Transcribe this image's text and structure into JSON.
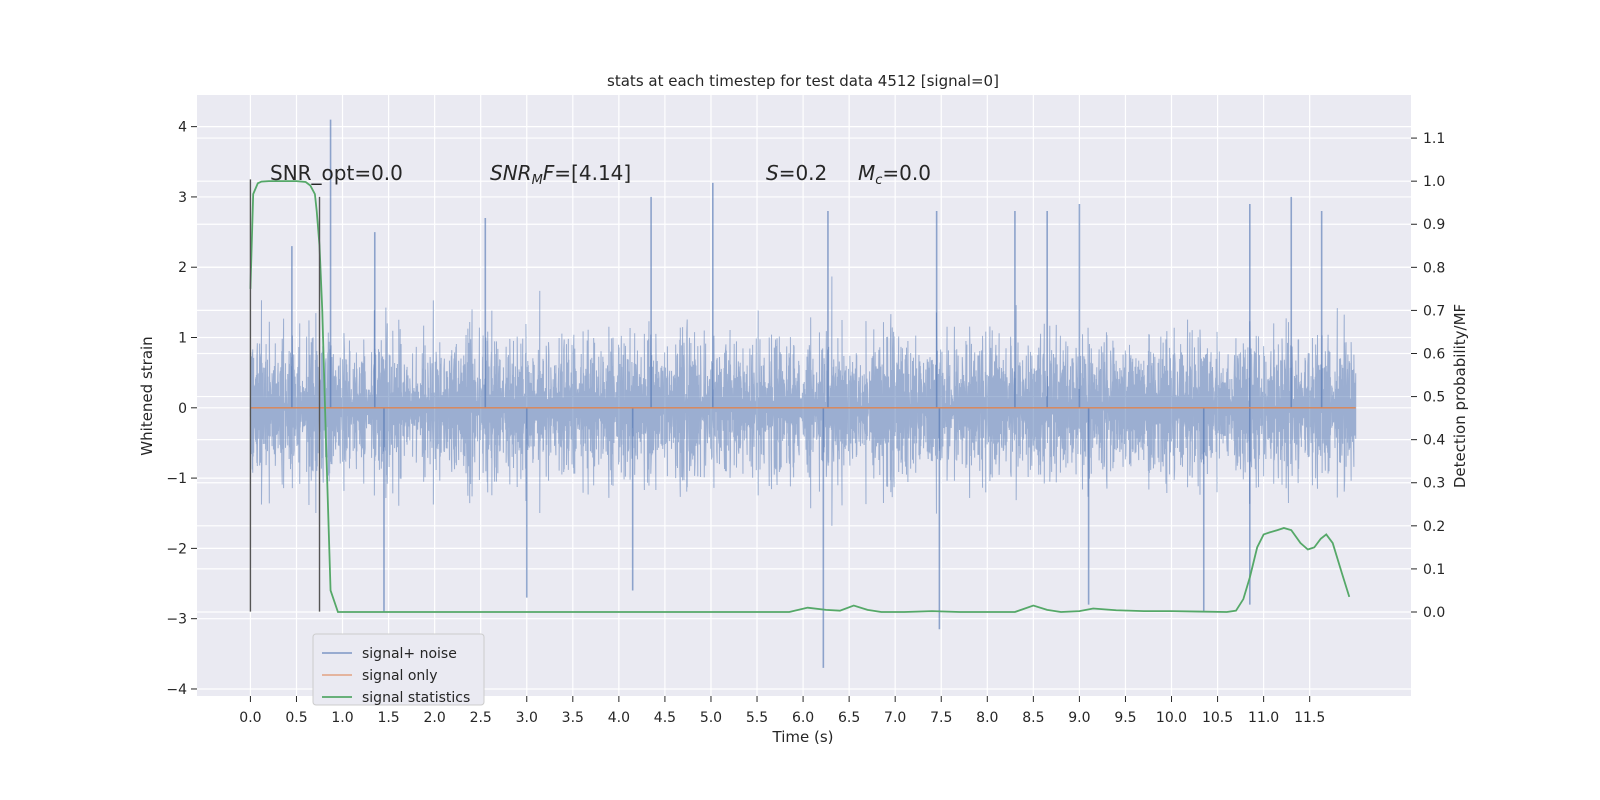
{
  "chart_data": {
    "type": "line",
    "title": "stats at each timestep for test data 4512 [signal=0]",
    "xlabel": "Time (s)",
    "ylabel": "Whitened strain",
    "ylabel_right": "Detection probability/MF",
    "xlim": [
      -0.58,
      12.6
    ],
    "ylim": [
      -4.1,
      4.45
    ],
    "ylim_right": [
      -0.195,
      1.2
    ],
    "x_ticks": [
      0.0,
      0.5,
      1.0,
      1.5,
      2.0,
      2.5,
      3.0,
      3.5,
      4.0,
      4.5,
      5.0,
      5.5,
      6.0,
      6.5,
      7.0,
      7.5,
      8.0,
      8.5,
      9.0,
      9.5,
      10.0,
      10.5,
      11.0,
      11.5
    ],
    "x_tick_labels": [
      "0.0",
      "0.5",
      "1.0",
      "1.5",
      "2.0",
      "2.5",
      "3.0",
      "3.5",
      "4.0",
      "4.5",
      "5.0",
      "5.5",
      "6.0",
      "6.5",
      "7.0",
      "7.5",
      "8.0",
      "8.5",
      "9.0",
      "9.5",
      "10.0",
      "10.5",
      "11.0",
      "11.5"
    ],
    "y_ticks": [
      -4,
      -3,
      -2,
      -1,
      0,
      1,
      2,
      3,
      4
    ],
    "y_tick_labels": [
      "−4",
      "−3",
      "−2",
      "−1",
      "0",
      "1",
      "2",
      "3",
      "4"
    ],
    "y_right_ticks": [
      0.0,
      0.1,
      0.2,
      0.3,
      0.4,
      0.5,
      0.6,
      0.7,
      0.8,
      0.9,
      1.0,
      1.1
    ],
    "y_right_tick_labels": [
      "0.0",
      "0.1",
      "0.2",
      "0.3",
      "0.4",
      "0.5",
      "0.6",
      "0.7",
      "0.8",
      "0.9",
      "1.0",
      "1.1"
    ],
    "grid": true,
    "legend_position": "lower-left",
    "series": [
      {
        "name": "signal+ noise",
        "axis": "left",
        "color": "#4c72b0",
        "x_range": [
          0.0,
          12.0
        ],
        "band_typical": [
          -1.5,
          1.4
        ],
        "spikes": [
          {
            "x": 0.87,
            "y": 4.1
          },
          {
            "x": 0.45,
            "y": 2.3
          },
          {
            "x": 1.35,
            "y": 2.5
          },
          {
            "x": 2.55,
            "y": 2.7
          },
          {
            "x": 4.35,
            "y": 3.0
          },
          {
            "x": 5.02,
            "y": 3.2
          },
          {
            "x": 6.27,
            "y": 2.8
          },
          {
            "x": 7.45,
            "y": 2.8
          },
          {
            "x": 8.3,
            "y": 2.8
          },
          {
            "x": 8.65,
            "y": 2.8
          },
          {
            "x": 9.0,
            "y": 2.9
          },
          {
            "x": 10.85,
            "y": 2.9
          },
          {
            "x": 11.3,
            "y": 3.0
          },
          {
            "x": 11.63,
            "y": 2.8
          },
          {
            "x": 1.45,
            "y": -2.9
          },
          {
            "x": 3.0,
            "y": -2.7
          },
          {
            "x": 4.15,
            "y": -2.6
          },
          {
            "x": 6.22,
            "y": -3.7
          },
          {
            "x": 7.48,
            "y": -3.15
          },
          {
            "x": 9.1,
            "y": -2.8
          },
          {
            "x": 10.35,
            "y": -2.9
          },
          {
            "x": 10.85,
            "y": -2.8
          }
        ]
      },
      {
        "name": "signal only",
        "axis": "left",
        "color": "#dd8452",
        "x": [
          0.0,
          12.0
        ],
        "y": [
          0.0,
          0.0
        ]
      },
      {
        "name": "signal statistics",
        "axis": "right",
        "color": "#55a868",
        "x": [
          0.0,
          0.03,
          0.08,
          0.12,
          0.2,
          0.3,
          0.4,
          0.5,
          0.6,
          0.65,
          0.7,
          0.72,
          0.75,
          0.78,
          0.82,
          0.87,
          0.95,
          1.2,
          2.0,
          3.0,
          4.0,
          5.0,
          5.5,
          5.85,
          6.05,
          6.25,
          6.4,
          6.55,
          6.7,
          6.85,
          7.1,
          7.4,
          7.7,
          8.0,
          8.3,
          8.5,
          8.65,
          8.8,
          9.0,
          9.15,
          9.4,
          9.7,
          10.0,
          10.3,
          10.6,
          10.7,
          10.78,
          10.85,
          10.93,
          11.0,
          11.07,
          11.15,
          11.22,
          11.3,
          11.4,
          11.48,
          11.55,
          11.62,
          11.68,
          11.75,
          11.85,
          11.93
        ],
        "y": [
          0.75,
          0.97,
          0.995,
          0.999,
          1.0,
          1.0,
          1.0,
          1.0,
          0.998,
          0.99,
          0.97,
          0.93,
          0.85,
          0.7,
          0.4,
          0.05,
          0.0,
          0.0,
          0.0,
          0.0,
          0.0,
          0.0,
          0.0,
          0.0,
          0.01,
          0.005,
          0.003,
          0.015,
          0.005,
          0.0,
          0.0,
          0.002,
          0.0,
          0.0,
          0.0,
          0.015,
          0.005,
          0.0,
          0.002,
          0.008,
          0.004,
          0.002,
          0.002,
          0.001,
          0.0,
          0.003,
          0.03,
          0.08,
          0.15,
          0.18,
          0.185,
          0.19,
          0.195,
          0.19,
          0.16,
          0.145,
          0.15,
          0.17,
          0.18,
          0.16,
          0.09,
          0.035
        ]
      },
      {
        "name": "",
        "axis": "left",
        "color": "#555555",
        "x": [
          0.0,
          0.0
        ],
        "y": [
          -2.9,
          3.25
        ]
      },
      {
        "name": "",
        "axis": "left",
        "color": "#555555",
        "x": [
          0.75,
          0.75
        ],
        "y": [
          -2.9,
          3.0
        ]
      }
    ],
    "annotations": [
      {
        "text": "SNR_opt=0.0",
        "x": 0.2,
        "y": 3.3
      },
      {
        "text": "SNR_MF=[4.14]",
        "x": 2.6,
        "y": 3.3
      },
      {
        "text": "S=0.2",
        "x": 5.6,
        "y": 3.3
      },
      {
        "text": "M_c=0.0",
        "x": 6.6,
        "y": 3.3
      }
    ]
  }
}
